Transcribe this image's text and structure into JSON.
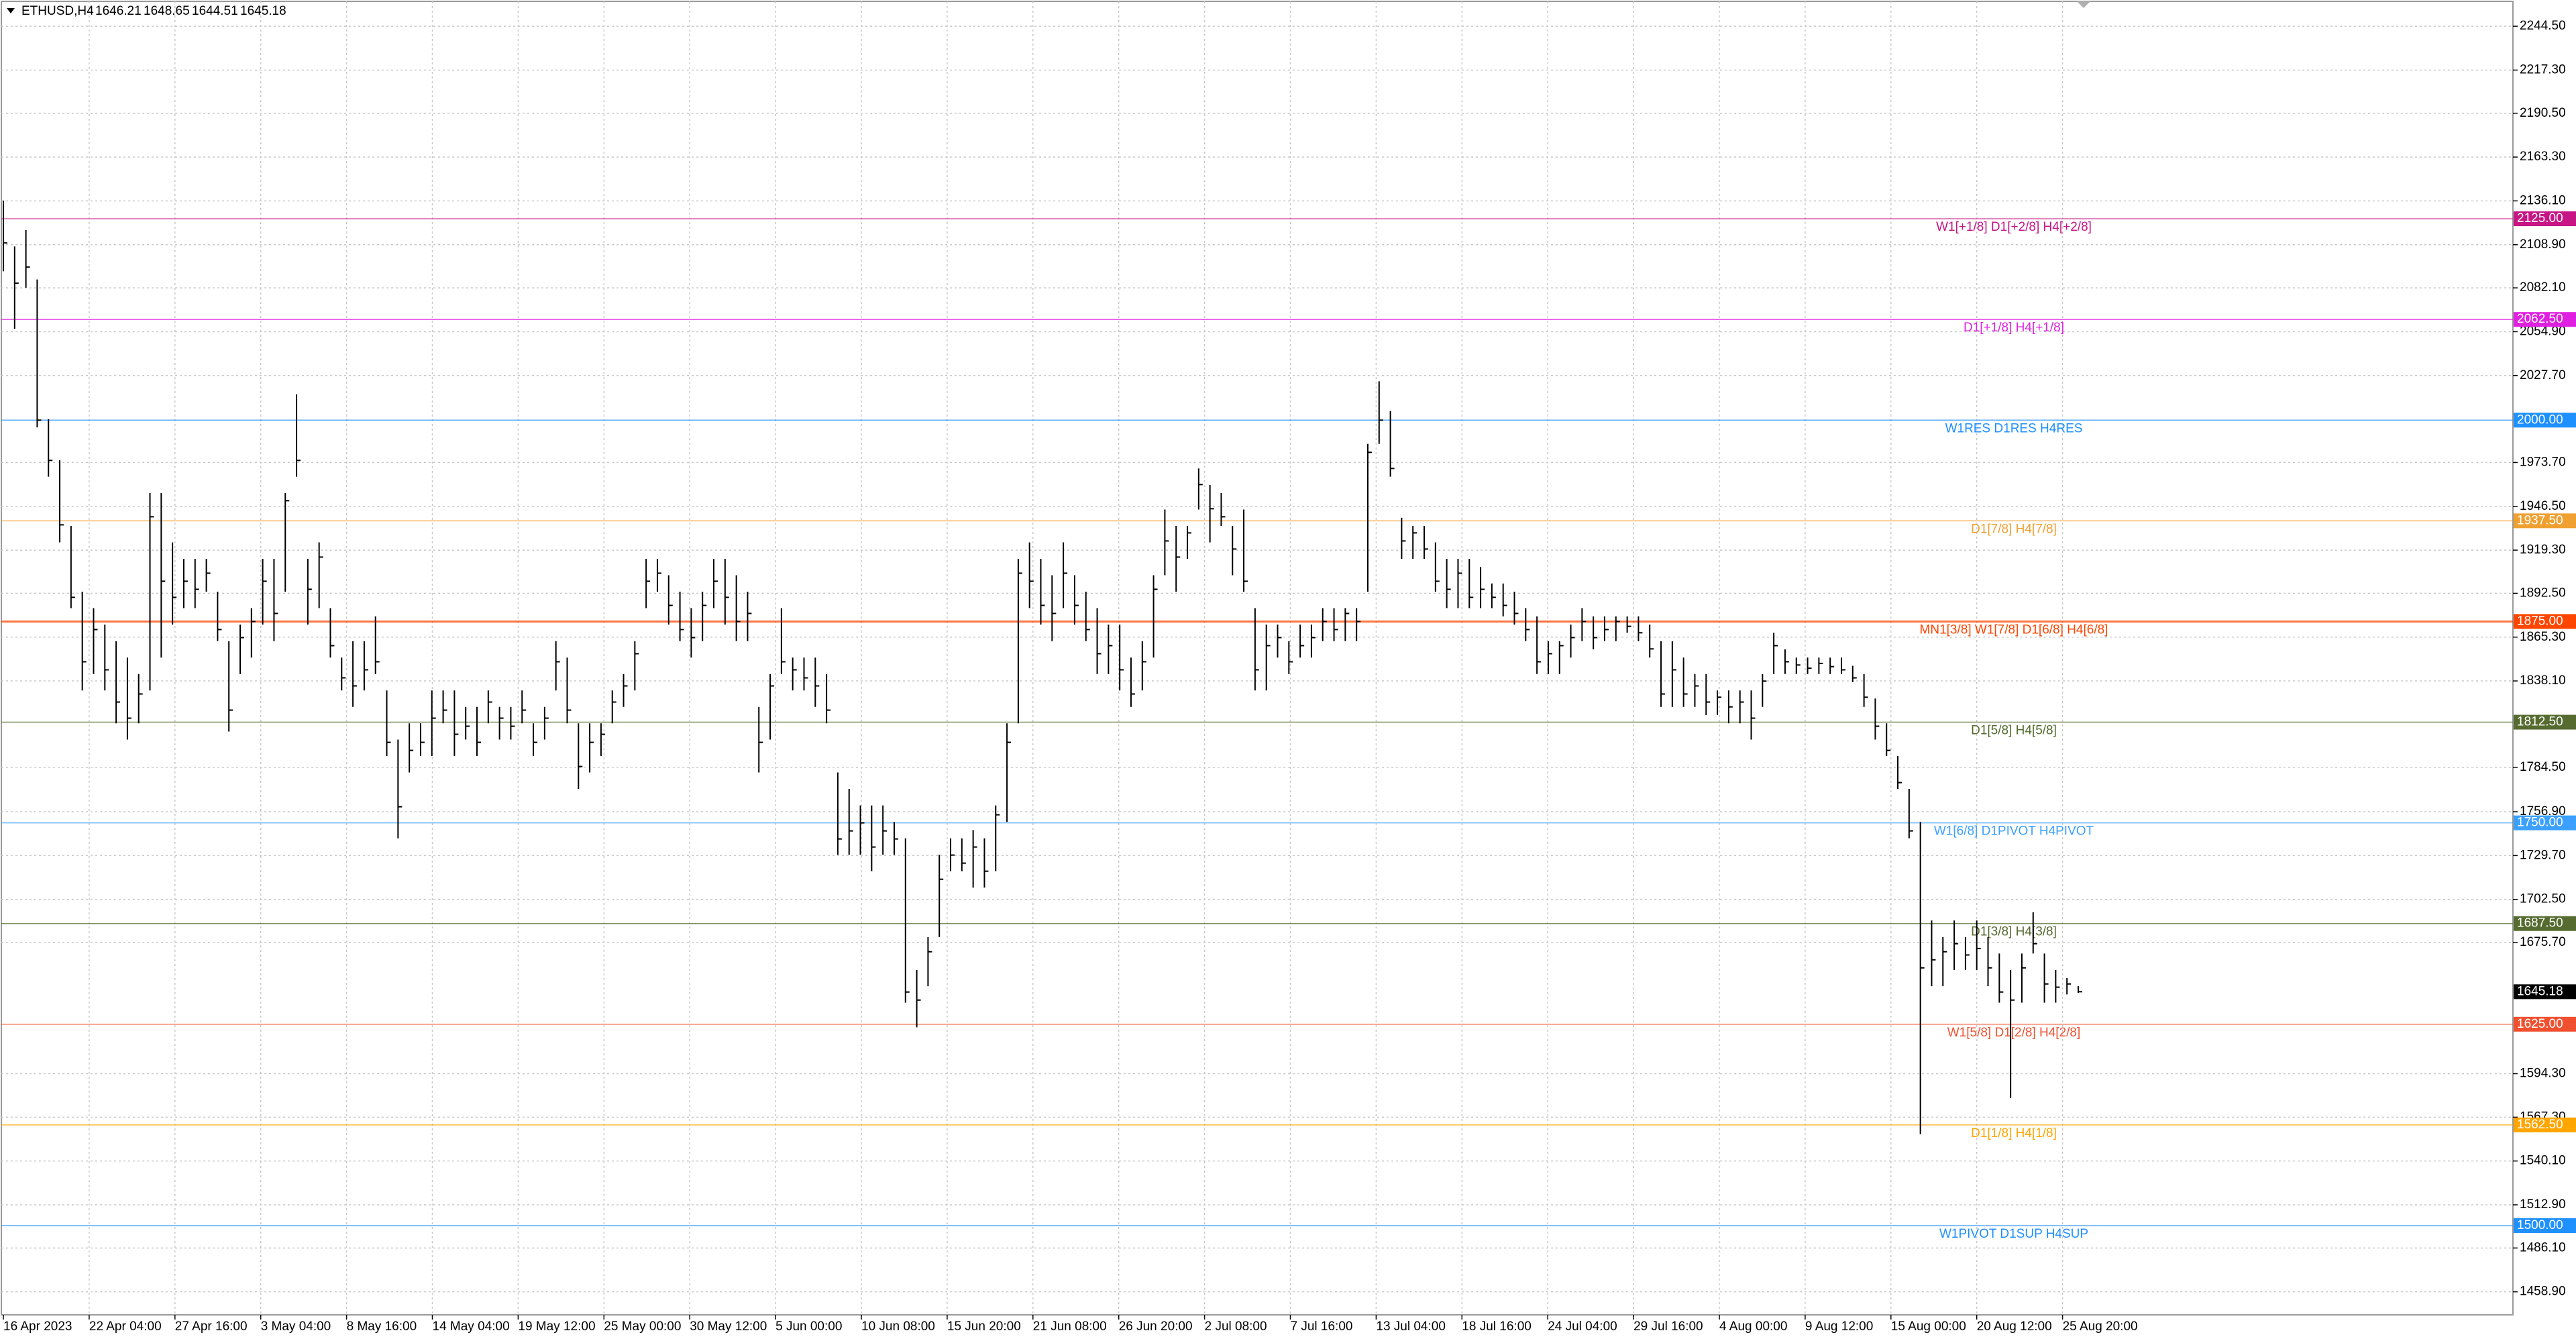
{
  "chart_data": {
    "type": "hlc",
    "quote": {
      "symbol": "ETHUSD,H4",
      "open": 1646.21,
      "high": 1648.65,
      "low": 1644.51,
      "close": 1645.18
    },
    "ylim": [
      1444.6,
      2260.8
    ],
    "yticks": [
      {
        "value": 2244.5,
        "label": "2244.50"
      },
      {
        "value": 2217.3,
        "label": "2217.30"
      },
      {
        "value": 2190.5,
        "label": "2190.50"
      },
      {
        "value": 2163.3,
        "label": "2163.30"
      },
      {
        "value": 2136.1,
        "label": "2136.10"
      },
      {
        "value": 2108.9,
        "label": "2108.90"
      },
      {
        "value": 2082.1,
        "label": "2082.10"
      },
      {
        "value": 2054.9,
        "label": "2054.90"
      },
      {
        "value": 2027.7,
        "label": "2027.70"
      },
      {
        "value": 1973.7,
        "label": "1973.70"
      },
      {
        "value": 1946.5,
        "label": "1946.50"
      },
      {
        "value": 1919.3,
        "label": "1919.30"
      },
      {
        "value": 1892.5,
        "label": "1892.50"
      },
      {
        "value": 1865.3,
        "label": "1865.30"
      },
      {
        "value": 1838.1,
        "label": "1838.10"
      },
      {
        "value": 1784.5,
        "label": "1784.50"
      },
      {
        "value": 1756.9,
        "label": "1756.90"
      },
      {
        "value": 1729.7,
        "label": "1729.70"
      },
      {
        "value": 1702.5,
        "label": "1702.50"
      },
      {
        "value": 1675.7,
        "label": "1675.70"
      },
      {
        "value": 1594.3,
        "label": "1594.30"
      },
      {
        "value": 1567.3,
        "label": "1567.30"
      },
      {
        "value": 1540.1,
        "label": "1540.10"
      },
      {
        "value": 1512.9,
        "label": "1512.90"
      },
      {
        "value": 1486.1,
        "label": "1486.10"
      },
      {
        "value": 1458.9,
        "label": "1458.90"
      }
    ],
    "xlabels": [
      "16 Apr 2023",
      "22 Apr 04:00",
      "27 Apr 16:00",
      "3 May 04:00",
      "8 May 16:00",
      "14 May 04:00",
      "19 May 12:00",
      "25 May 00:00",
      "30 May 12:00",
      "5 Jun 00:00",
      "10 Jun 08:00",
      "15 Jun 20:00",
      "21 Jun 08:00",
      "26 Jun 20:00",
      "2 Jul 08:00",
      "7 Jul 16:00",
      "13 Jul 04:00",
      "18 Jul 16:00",
      "24 Jul 04:00",
      "29 Jul 16:00",
      "4 Aug 00:00",
      "9 Aug 12:00",
      "15 Aug 00:00",
      "20 Aug 12:00",
      "25 Aug 20:00"
    ],
    "grid": true,
    "bar_color": "#000000",
    "levels": [
      {
        "price": 2125,
        "price_label": "2125.00",
        "text": "W1[+1/8] D1[+2/8] H4[+2/8]",
        "color": "#c71585"
      },
      {
        "price": 2062.5,
        "price_label": "2062.50",
        "text": "D1[+1/8] H4[+1/8]",
        "color": "#e020e0"
      },
      {
        "price": 2000,
        "price_label": "2000.00",
        "text": "W1RES D1RES H4RES",
        "color": "#1e90ff"
      },
      {
        "price": 1937.5,
        "price_label": "1937.50",
        "text": "D1[7/8] H4[7/8]",
        "color": "#f0a030"
      },
      {
        "price": 1875,
        "price_label": "1875.00",
        "text": "MN1[3/8] W1[7/8] D1[6/8] H4[6/8]",
        "color": "#ff4500"
      },
      {
        "price": 1812.5,
        "price_label": "1812.50",
        "text": "D1[5/8] H4[5/8]",
        "color": "#556b2f"
      },
      {
        "price": 1750,
        "price_label": "1750.00",
        "text": "W1[6/8] D1PIVOT H4PIVOT",
        "color": "#3ba0ff"
      },
      {
        "price": 1687.5,
        "price_label": "1687.50",
        "text": "D1[3/8] H4[3/8]",
        "color": "#556b2f"
      },
      {
        "price": 1625,
        "price_label": "1625.00",
        "text": "W1[5/8] D1[2/8] H4[2/8]",
        "color": "#f05030"
      },
      {
        "price": 1562.5,
        "price_label": "1562.50",
        "text": "D1[1/8] H4[1/8]",
        "color": "#ffa500"
      },
      {
        "price": 1500,
        "price_label": "1500.00",
        "text": "W1PIVOT D1SUP H4SUP",
        "color": "#1e90ff"
      }
    ],
    "bars": [
      [
        2136.3,
        2092.4,
        2110
      ],
      [
        2107.8,
        2056.7,
        2085
      ],
      [
        2118.0,
        2082.2,
        2095
      ],
      [
        2087.3,
        1995.5,
        2000
      ],
      [
        2000.6,
        1964.9,
        1975
      ],
      [
        1975.1,
        1924.1,
        1935
      ],
      [
        1934.3,
        1883.3,
        1890
      ],
      [
        1893.5,
        1832.2,
        1850
      ],
      [
        1883.3,
        1842.4,
        1870
      ],
      [
        1873.1,
        1832.2,
        1845
      ],
      [
        1862.8,
        1811.8,
        1825
      ],
      [
        1852.6,
        1801.7,
        1815
      ],
      [
        1842.4,
        1811.8,
        1830
      ],
      [
        1954.7,
        1832.2,
        1940
      ],
      [
        1954.7,
        1852.6,
        1900
      ],
      [
        1924.1,
        1873.1,
        1890
      ],
      [
        1913.9,
        1883.3,
        1900
      ],
      [
        1913.9,
        1883.3,
        1895
      ],
      [
        1913.9,
        1893.5,
        1905
      ],
      [
        1893.5,
        1862.8,
        1870
      ],
      [
        1862.8,
        1806.7,
        1820
      ],
      [
        1873.1,
        1842.4,
        1865
      ],
      [
        1883.3,
        1852.6,
        1875
      ],
      [
        1913.9,
        1873.1,
        1900
      ],
      [
        1913.9,
        1862.8,
        1880
      ],
      [
        1954.7,
        1893.5,
        1950
      ],
      [
        2016.0,
        1964.9,
        1975
      ],
      [
        1913.9,
        1873.1,
        1895
      ],
      [
        1924.1,
        1883.3,
        1915
      ],
      [
        1883.3,
        1852.6,
        1860
      ],
      [
        1852.6,
        1832.2,
        1840
      ],
      [
        1862.8,
        1822.0,
        1835
      ],
      [
        1862.8,
        1832.2,
        1845
      ],
      [
        1878.2,
        1842.4,
        1850
      ],
      [
        1832.2,
        1791.5,
        1800
      ],
      [
        1801.7,
        1740.4,
        1760
      ],
      [
        1811.8,
        1781.3,
        1795
      ],
      [
        1811.8,
        1791.5,
        1800
      ],
      [
        1832.2,
        1791.5,
        1815
      ],
      [
        1832.2,
        1811.8,
        1820
      ],
      [
        1832.2,
        1791.5,
        1805
      ],
      [
        1822.0,
        1801.7,
        1810
      ],
      [
        1822.0,
        1791.5,
        1800
      ],
      [
        1832.2,
        1811.8,
        1825
      ],
      [
        1822.0,
        1801.7,
        1815
      ],
      [
        1822.0,
        1801.7,
        1810
      ],
      [
        1832.2,
        1811.8,
        1820
      ],
      [
        1811.8,
        1791.5,
        1800
      ],
      [
        1822.0,
        1801.7,
        1815
      ],
      [
        1862.8,
        1832.2,
        1850
      ],
      [
        1852.6,
        1811.8,
        1820
      ],
      [
        1811.8,
        1771.1,
        1785
      ],
      [
        1811.8,
        1781.3,
        1800
      ],
      [
        1811.8,
        1791.5,
        1805
      ],
      [
        1832.2,
        1811.8,
        1825
      ],
      [
        1842.4,
        1822.0,
        1835
      ],
      [
        1862.8,
        1832.2,
        1855
      ],
      [
        1913.9,
        1883.3,
        1900
      ],
      [
        1913.9,
        1893.5,
        1905
      ],
      [
        1903.7,
        1873.1,
        1885
      ],
      [
        1893.5,
        1862.8,
        1870
      ],
      [
        1883.3,
        1852.6,
        1865
      ],
      [
        1893.5,
        1862.8,
        1885
      ],
      [
        1913.9,
        1883.3,
        1900
      ],
      [
        1913.9,
        1873.1,
        1890
      ],
      [
        1903.7,
        1862.8,
        1875
      ],
      [
        1893.5,
        1862.8,
        1880
      ],
      [
        1822.0,
        1781.3,
        1800
      ],
      [
        1842.4,
        1801.7,
        1835
      ],
      [
        1883.3,
        1842.4,
        1850
      ],
      [
        1852.6,
        1832.2,
        1845
      ],
      [
        1852.6,
        1832.2,
        1840
      ],
      [
        1852.6,
        1822.0,
        1835
      ],
      [
        1842.4,
        1811.8,
        1820
      ],
      [
        1781.3,
        1730.2,
        1740
      ],
      [
        1771.1,
        1730.2,
        1745
      ],
      [
        1760.8,
        1730.2,
        1750
      ],
      [
        1760.8,
        1720.0,
        1735
      ],
      [
        1760.8,
        1730.2,
        1745
      ],
      [
        1750.6,
        1730.2,
        1740
      ],
      [
        1740.4,
        1638.4,
        1645
      ],
      [
        1658.7,
        1623.1,
        1640
      ],
      [
        1679.1,
        1648.6,
        1670
      ],
      [
        1730.2,
        1679.1,
        1715
      ],
      [
        1740.4,
        1720.0,
        1730
      ],
      [
        1740.4,
        1720.0,
        1725
      ],
      [
        1745.5,
        1709.8,
        1735
      ],
      [
        1740.4,
        1709.8,
        1720
      ],
      [
        1760.8,
        1720.0,
        1755
      ],
      [
        1811.8,
        1750.6,
        1800
      ],
      [
        1913.9,
        1811.8,
        1905
      ],
      [
        1924.1,
        1883.3,
        1900
      ],
      [
        1913.9,
        1873.1,
        1885
      ],
      [
        1903.7,
        1862.8,
        1880
      ],
      [
        1924.1,
        1883.3,
        1905
      ],
      [
        1903.7,
        1873.1,
        1885
      ],
      [
        1893.5,
        1862.8,
        1870
      ],
      [
        1883.3,
        1842.4,
        1855
      ],
      [
        1873.1,
        1842.4,
        1860
      ],
      [
        1873.1,
        1832.2,
        1845
      ],
      [
        1852.6,
        1822.0,
        1830
      ],
      [
        1862.8,
        1832.2,
        1850
      ],
      [
        1903.7,
        1852.6,
        1895
      ],
      [
        1944.5,
        1903.7,
        1925
      ],
      [
        1934.3,
        1893.5,
        1915
      ],
      [
        1934.3,
        1913.9,
        1930
      ],
      [
        1970.0,
        1944.5,
        1960
      ],
      [
        1959.8,
        1924.1,
        1945
      ],
      [
        1954.7,
        1934.3,
        1940
      ],
      [
        1934.3,
        1903.7,
        1920
      ],
      [
        1944.5,
        1893.5,
        1900
      ],
      [
        1883.3,
        1832.2,
        1845
      ],
      [
        1873.1,
        1832.2,
        1860
      ],
      [
        1873.1,
        1852.6,
        1865
      ],
      [
        1862.8,
        1842.4,
        1850
      ],
      [
        1873.1,
        1852.6,
        1860
      ],
      [
        1873.1,
        1852.6,
        1865
      ],
      [
        1883.3,
        1862.8,
        1875
      ],
      [
        1883.3,
        1862.8,
        1870
      ],
      [
        1883.3,
        1862.8,
        1880
      ],
      [
        1883.3,
        1862.8,
        1875
      ],
      [
        1985.3,
        1893.5,
        1980
      ],
      [
        2024.1,
        1985.3,
        2000
      ],
      [
        2005.7,
        1964.9,
        1970
      ],
      [
        1939.4,
        1913.9,
        1925
      ],
      [
        1934.3,
        1913.9,
        1930
      ],
      [
        1934.3,
        1913.9,
        1920
      ],
      [
        1924.1,
        1893.5,
        1900
      ],
      [
        1913.9,
        1883.3,
        1895
      ],
      [
        1913.9,
        1883.3,
        1905
      ],
      [
        1913.9,
        1883.3,
        1890
      ],
      [
        1908.8,
        1883.3,
        1895
      ],
      [
        1898.6,
        1883.3,
        1890
      ],
      [
        1898.6,
        1878.2,
        1885
      ],
      [
        1893.5,
        1873.1,
        1880
      ],
      [
        1883.3,
        1862.8,
        1870
      ],
      [
        1878.2,
        1842.4,
        1850
      ],
      [
        1862.8,
        1842.4,
        1855
      ],
      [
        1862.8,
        1842.4,
        1860
      ],
      [
        1873.1,
        1852.6,
        1865
      ],
      [
        1883.3,
        1862.8,
        1875
      ],
      [
        1878.2,
        1857.7,
        1865
      ],
      [
        1878.2,
        1862.8,
        1870
      ],
      [
        1878.2,
        1862.8,
        1875
      ],
      [
        1878.2,
        1868.0,
        1872
      ],
      [
        1878.2,
        1862.8,
        1868
      ],
      [
        1873.1,
        1852.6,
        1858
      ],
      [
        1862.8,
        1822.0,
        1830
      ],
      [
        1862.8,
        1822.0,
        1845
      ],
      [
        1852.6,
        1822.0,
        1830
      ],
      [
        1842.4,
        1822.0,
        1835
      ],
      [
        1842.4,
        1816.9,
        1825
      ],
      [
        1832.2,
        1816.9,
        1828
      ],
      [
        1832.2,
        1811.8,
        1822
      ],
      [
        1832.2,
        1811.8,
        1825
      ],
      [
        1832.2,
        1801.7,
        1815
      ],
      [
        1842.4,
        1822.0,
        1838
      ],
      [
        1868.0,
        1842.4,
        1860
      ],
      [
        1857.7,
        1842.4,
        1850
      ],
      [
        1852.6,
        1842.4,
        1848
      ],
      [
        1852.6,
        1842.4,
        1846
      ],
      [
        1852.6,
        1842.4,
        1849
      ],
      [
        1852.6,
        1842.4,
        1847
      ],
      [
        1852.6,
        1842.4,
        1845
      ],
      [
        1847.5,
        1837.3,
        1840
      ],
      [
        1842.4,
        1822.0,
        1828
      ],
      [
        1827.2,
        1801.7,
        1810
      ],
      [
        1811.8,
        1791.5,
        1795
      ],
      [
        1791.5,
        1771.1,
        1775
      ],
      [
        1771.1,
        1740.4,
        1745
      ],
      [
        1750.6,
        1556.8,
        1660
      ],
      [
        1689.4,
        1648.6,
        1665
      ],
      [
        1679.1,
        1648.6,
        1670
      ],
      [
        1689.4,
        1658.7,
        1675
      ],
      [
        1679.1,
        1658.7,
        1668
      ],
      [
        1689.4,
        1658.7,
        1672
      ],
      [
        1679.1,
        1648.6,
        1660
      ],
      [
        1668.9,
        1638.4,
        1645
      ],
      [
        1658.7,
        1579.2,
        1640
      ],
      [
        1668.9,
        1638.4,
        1660
      ],
      [
        1694.5,
        1668.9,
        1675
      ],
      [
        1668.9,
        1638.4,
        1650
      ],
      [
        1658.7,
        1638.4,
        1648
      ],
      [
        1653.7,
        1643.5,
        1650
      ],
      [
        1648.65,
        1644.51,
        1645.18
      ]
    ]
  }
}
